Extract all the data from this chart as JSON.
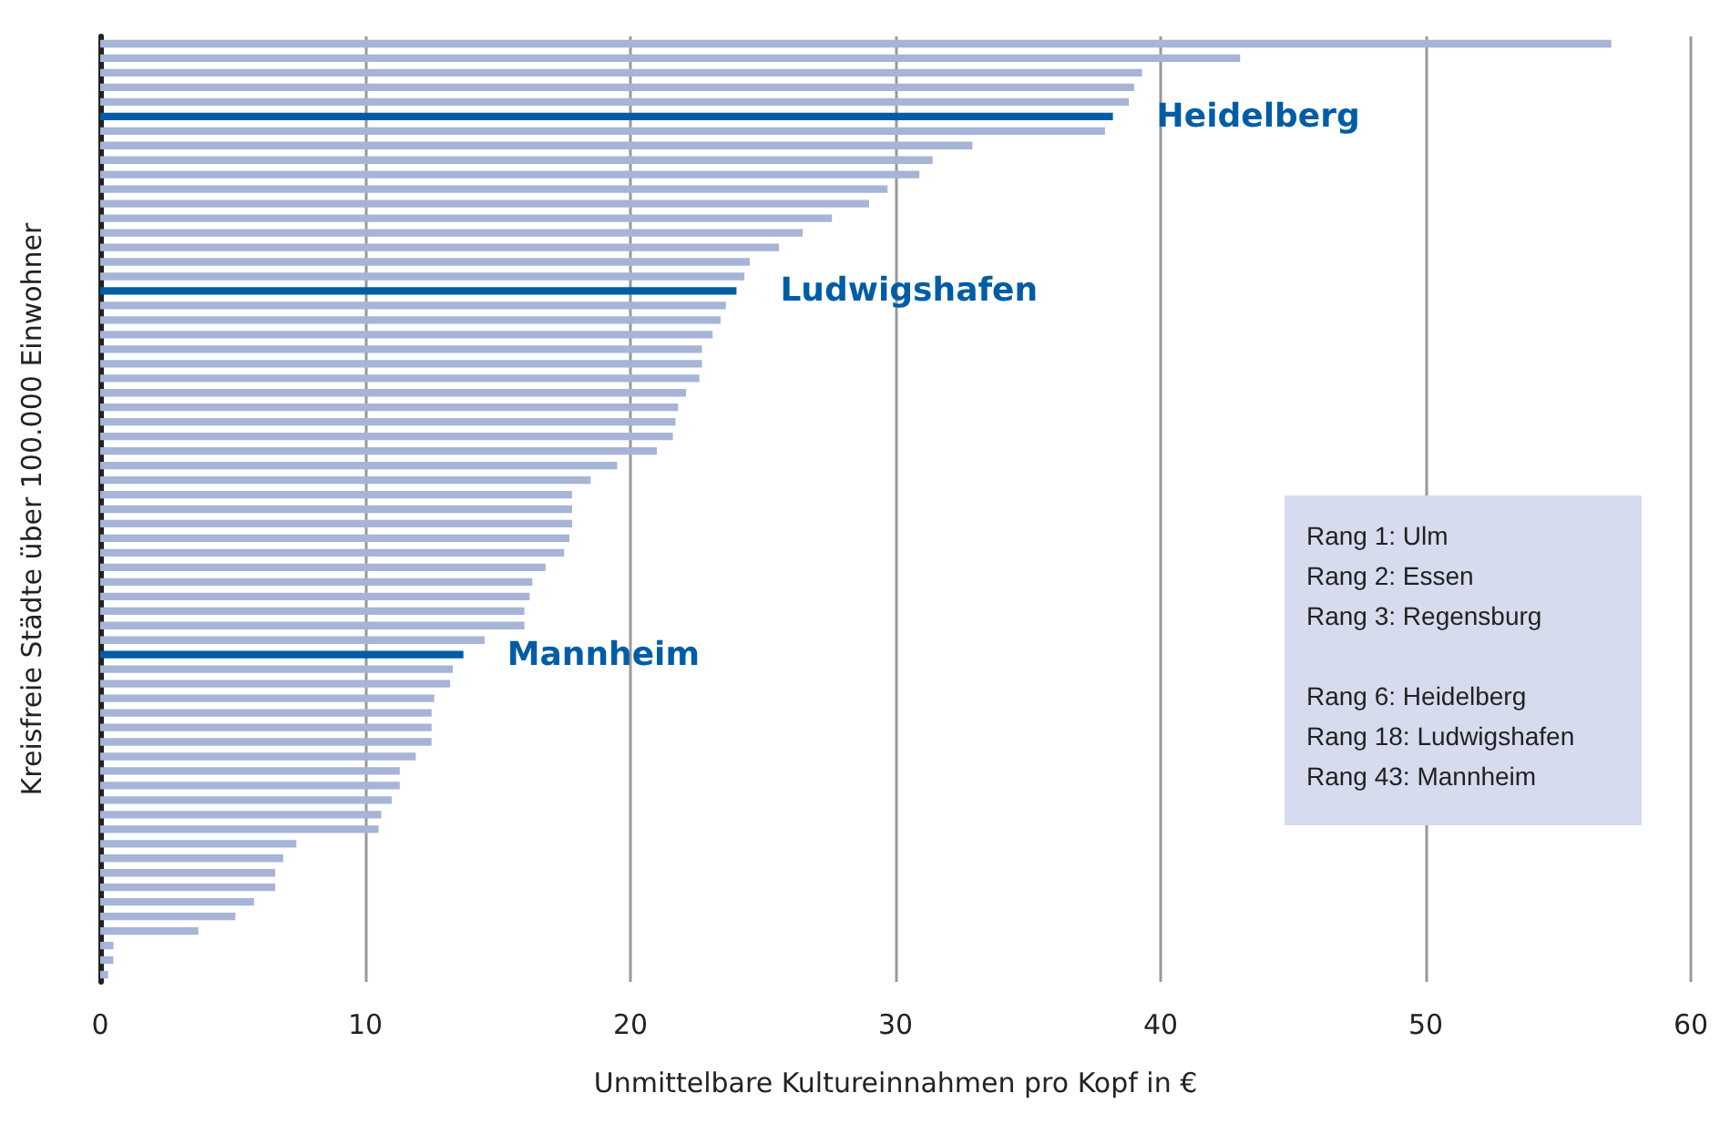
{
  "chart_data": {
    "type": "bar",
    "orientation": "horizontal",
    "xlabel": "Unmittelbare Kultureinnahmen pro Kopf in €",
    "ylabel": "Kreisfreie Städte über 100.000 Einwohner",
    "categories": [
      null,
      null,
      null,
      null,
      null,
      "Heidelberg",
      null,
      null,
      null,
      null,
      null,
      null,
      null,
      null,
      null,
      null,
      null,
      "Ludwigshafen",
      null,
      null,
      null,
      null,
      null,
      null,
      null,
      null,
      null,
      null,
      null,
      null,
      null,
      null,
      null,
      null,
      null,
      null,
      null,
      null,
      null,
      null,
      null,
      null,
      "Mannheim",
      null,
      null,
      null,
      null,
      null,
      null,
      null,
      null,
      null,
      null,
      null,
      null,
      null,
      null,
      null,
      null,
      null,
      null,
      null,
      null,
      null,
      null
    ],
    "values": [
      57.0,
      43.0,
      39.3,
      39.0,
      38.8,
      38.2,
      37.9,
      32.9,
      31.4,
      30.9,
      29.7,
      29.0,
      27.6,
      26.5,
      25.6,
      24.5,
      24.3,
      24.0,
      23.6,
      23.4,
      23.1,
      22.7,
      22.7,
      22.6,
      22.1,
      21.8,
      21.7,
      21.6,
      21.0,
      19.5,
      18.5,
      17.8,
      17.8,
      17.8,
      17.7,
      17.5,
      16.8,
      16.3,
      16.2,
      16.0,
      16.0,
      14.5,
      13.7,
      13.3,
      13.2,
      12.6,
      12.5,
      12.5,
      12.5,
      11.9,
      11.3,
      11.3,
      11.0,
      10.6,
      10.5,
      7.4,
      6.9,
      6.6,
      6.6,
      5.8,
      5.1,
      3.7,
      0.5,
      0.5,
      0.3
    ],
    "colors": [
      "#a6b4d6",
      "#a6b4d6",
      "#a6b4d6",
      "#a6b4d6",
      "#a6b4d6",
      "#005da5",
      "#a6b4d6",
      "#a6b4d6",
      "#a6b4d6",
      "#a6b4d6",
      "#a6b4d6",
      "#a6b4d6",
      "#a6b4d6",
      "#a6b4d6",
      "#a6b4d6",
      "#a6b4d6",
      "#a6b4d6",
      "#005da5",
      "#a6b4d6",
      "#a6b4d6",
      "#a6b4d6",
      "#a6b4d6",
      "#a6b4d6",
      "#a6b4d6",
      "#a6b4d6",
      "#a6b4d6",
      "#a6b4d6",
      "#a6b4d6",
      "#a6b4d6",
      "#a6b4d6",
      "#a6b4d6",
      "#a6b4d6",
      "#a6b4d6",
      "#a6b4d6",
      "#a6b4d6",
      "#a6b4d6",
      "#a6b4d6",
      "#a6b4d6",
      "#a6b4d6",
      "#a6b4d6",
      "#a6b4d6",
      "#a6b4d6",
      "#005da5",
      "#a6b4d6",
      "#a6b4d6",
      "#a6b4d6",
      "#a6b4d6",
      "#a6b4d6",
      "#a6b4d6",
      "#a6b4d6",
      "#a6b4d6",
      "#a6b4d6",
      "#a6b4d6",
      "#a6b4d6",
      "#a6b4d6",
      "#a6b4d6",
      "#a6b4d6",
      "#a6b4d6",
      "#a6b4d6",
      "#a6b4d6",
      "#a6b4d6",
      "#a6b4d6",
      "#a6b4d6",
      "#a6b4d6",
      "#a6b4d6"
    ],
    "xlim": [
      0,
      60
    ],
    "xticks": [
      0,
      10,
      20,
      30,
      40,
      50,
      60
    ],
    "grid": "x",
    "tick_labels": "x",
    "annotations": [
      "Rang 1: Ulm\nRang 2: Essen\nRang 3: Regensburg",
      "Rang 6: Heidelberg\nRang 18: Ludwigshafen\nRang 43: Mannheim"
    ]
  }
}
